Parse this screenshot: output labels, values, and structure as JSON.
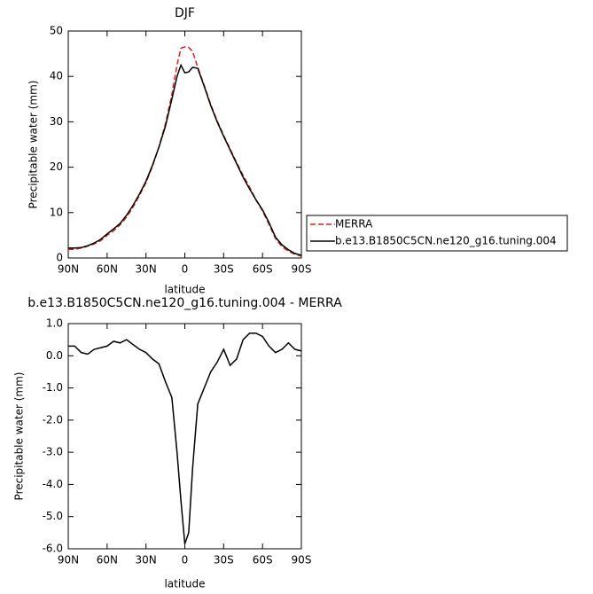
{
  "chart_data": [
    {
      "type": "line",
      "title": "DJF",
      "xlabel": "latitude",
      "ylabel": "Precipitable water (mm)",
      "x": [
        90,
        85,
        80,
        75,
        70,
        65,
        60,
        55,
        50,
        45,
        40,
        35,
        30,
        25,
        20,
        15,
        10,
        6,
        3,
        0,
        -3,
        -6,
        -10,
        -15,
        -20,
        -25,
        -30,
        -35,
        -40,
        -45,
        -50,
        -55,
        -60,
        -65,
        -70,
        -75,
        -80,
        -85,
        -90
      ],
      "xlim": [
        90,
        -90
      ],
      "xticks": [
        {
          "value": 90,
          "label": "90N"
        },
        {
          "value": 60,
          "label": "60N"
        },
        {
          "value": 30,
          "label": "30N"
        },
        0,
        {
          "value": -30,
          "label": "30S"
        },
        {
          "value": -60,
          "label": "60S"
        },
        {
          "value": -90,
          "label": "90S"
        }
      ],
      "ylim": [
        0,
        50
      ],
      "yticks": [
        0,
        10,
        20,
        30,
        40,
        50
      ],
      "series": [
        {
          "name": "MERRA",
          "color": "#e0201b",
          "style": "dashed",
          "values": [
            1.9,
            1.9,
            2.2,
            2.6,
            3.1,
            3.8,
            5.0,
            6.0,
            7.3,
            9.0,
            11.2,
            13.8,
            16.6,
            20.2,
            24.5,
            29.5,
            36,
            42.5,
            46.2,
            46.5,
            46.4,
            45.5,
            42,
            38,
            33.8,
            30.2,
            27,
            24,
            21,
            18.2,
            15.6,
            12.8,
            10.4,
            7.4,
            4.3,
            2.5,
            1.5,
            0.8,
            0.4
          ]
        },
        {
          "name": "b.e13.B1850C5CN.ne120_g16.tuning.004",
          "color": "#000000",
          "style": "solid",
          "values": [
            2.2,
            2.2,
            2.3,
            2.7,
            3.3,
            4.1,
            5.3,
            6.4,
            7.6,
            9.4,
            11.6,
            14.1,
            16.9,
            20.4,
            24.4,
            29,
            35,
            40,
            42.5,
            40.8,
            41,
            42,
            41.8,
            37.8,
            33.6,
            30,
            26.8,
            23.8,
            20.8,
            17.8,
            15.2,
            12.8,
            10.6,
            7.8,
            4.6,
            2.9,
            1.8,
            1.0,
            0.6
          ]
        }
      ]
    },
    {
      "type": "line",
      "title": "b.e13.B1850C5CN.ne120_g16.tuning.004 - MERRA",
      "xlabel": "latitude",
      "ylabel": "Precipitable water (mm)",
      "x": [
        90,
        85,
        80,
        75,
        70,
        65,
        60,
        55,
        50,
        45,
        40,
        35,
        30,
        25,
        20,
        15,
        10,
        6,
        3,
        0,
        -3,
        -6,
        -10,
        -15,
        -20,
        -25,
        -30,
        -35,
        -40,
        -45,
        -50,
        -55,
        -60,
        -65,
        -70,
        -75,
        -80,
        -85,
        -90
      ],
      "xlim": [
        90,
        -90
      ],
      "xticks": [
        {
          "value": 90,
          "label": "90N"
        },
        {
          "value": 60,
          "label": "60N"
        },
        {
          "value": 30,
          "label": "30N"
        },
        0,
        {
          "value": -30,
          "label": "30S"
        },
        {
          "value": -60,
          "label": "60S"
        },
        {
          "value": -90,
          "label": "90S"
        }
      ],
      "ylim": [
        -6,
        1
      ],
      "yticks": [
        {
          "value": -6,
          "label": "-6.0"
        },
        {
          "value": -5,
          "label": "-5.0"
        },
        {
          "value": -4,
          "label": "-4.0"
        },
        {
          "value": -3,
          "label": "-3.0"
        },
        {
          "value": -2,
          "label": "-2.0"
        },
        {
          "value": -1,
          "label": "-1.0"
        },
        {
          "value": 0,
          "label": "0.0"
        },
        {
          "value": 1,
          "label": "1.0"
        }
      ],
      "series": [
        {
          "color": "#000000",
          "style": "solid",
          "values": [
            0.3,
            0.3,
            0.1,
            0.05,
            0.2,
            0.25,
            0.3,
            0.45,
            0.4,
            0.5,
            0.35,
            0.2,
            0.1,
            -0.1,
            -0.25,
            -0.8,
            -1.3,
            -3,
            -4.5,
            -5.85,
            -5.5,
            -3.5,
            -1.5,
            -1.0,
            -0.5,
            -0.2,
            0.2,
            -0.3,
            -0.1,
            0.5,
            0.7,
            0.7,
            0.6,
            0.3,
            0.1,
            0.2,
            0.4,
            0.2,
            0.15
          ]
        }
      ]
    }
  ]
}
